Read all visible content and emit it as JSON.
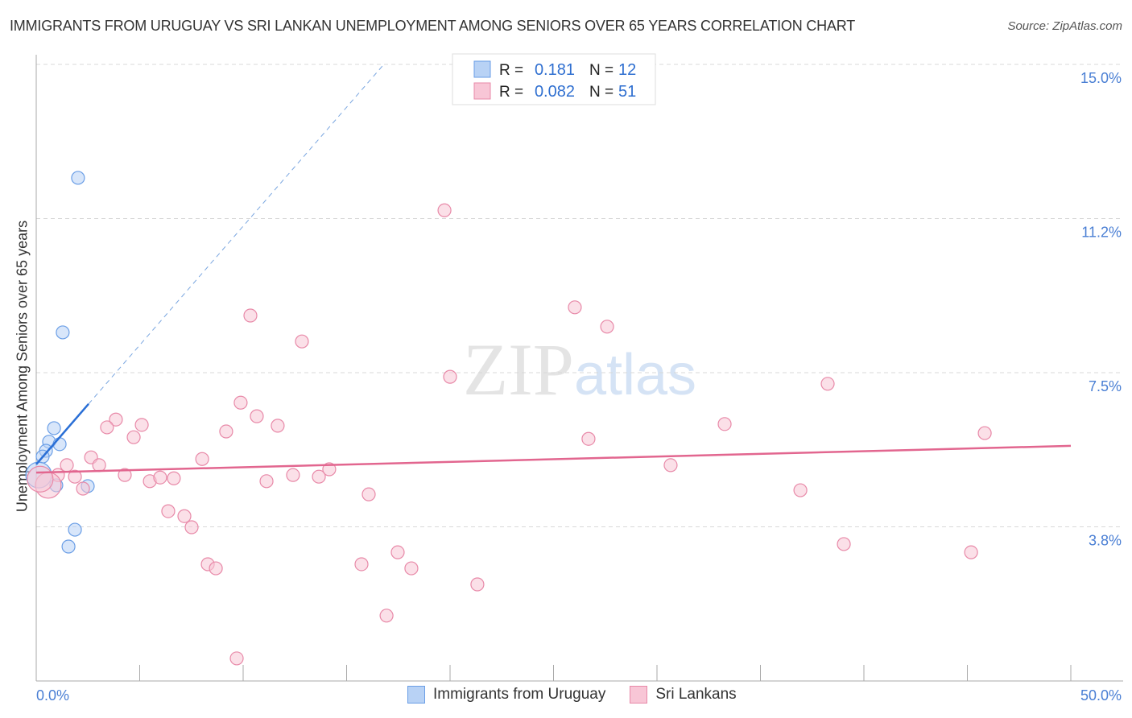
{
  "chart_data": {
    "type": "scatter",
    "title": "IMMIGRANTS FROM URUGUAY VS SRI LANKAN UNEMPLOYMENT AMONG SENIORS OVER 65 YEARS CORRELATION CHART",
    "source": "Source: ZipAtlas.com",
    "xlabel": "",
    "ylabel": "Unemployment Among Seniors over 65 years",
    "xlim": [
      0,
      50
    ],
    "ylim": [
      0,
      15
    ],
    "x_tick_labels": [
      "0.0%",
      "50.0%"
    ],
    "y_ticks": [
      3.75,
      7.5,
      11.25,
      15
    ],
    "y_tick_labels": [
      "3.8%",
      "7.5%",
      "11.2%",
      "15.0%"
    ],
    "grid": true,
    "watermark": "ZIPatlas",
    "legend_stats": [
      {
        "r_label": "R =",
        "r": "0.181",
        "n_label": "N =",
        "n": "12"
      },
      {
        "r_label": "R =",
        "r": "0.082",
        "n_label": "N =",
        "n": "51"
      }
    ],
    "series": [
      {
        "name": "Immigrants from Uruguay",
        "color": "#6a9ee6",
        "fill": "#b8d2f5",
        "trend": {
          "x": [
            0,
            2.53
          ],
          "y": [
            5.27,
            6.74
          ],
          "dashed_to": [
            16.73,
            14.96
          ]
        },
        "points": [
          [
            2.02,
            12.24
          ],
          [
            1.28,
            8.48
          ],
          [
            0.86,
            6.15
          ],
          [
            0.62,
            5.82
          ],
          [
            1.13,
            5.76
          ],
          [
            0.47,
            5.6
          ],
          [
            0.31,
            5.46
          ],
          [
            0.12,
            5.01,
            "large"
          ],
          [
            0.97,
            4.76
          ],
          [
            2.49,
            4.74
          ],
          [
            1.87,
            3.68
          ],
          [
            1.56,
            3.27
          ]
        ]
      },
      {
        "name": "Sri Lankans",
        "color": "#e889a8",
        "fill": "#f8c6d6",
        "trend": {
          "x": [
            0,
            50
          ],
          "y": [
            5.07,
            5.72
          ]
        },
        "points": [
          [
            19.73,
            11.45
          ],
          [
            10.35,
            8.89
          ],
          [
            26.03,
            9.09
          ],
          [
            27.59,
            8.62
          ],
          [
            12.84,
            8.26
          ],
          [
            20.0,
            7.4
          ],
          [
            38.25,
            7.23
          ],
          [
            9.88,
            6.77
          ],
          [
            10.66,
            6.44
          ],
          [
            3.85,
            6.36
          ],
          [
            3.42,
            6.17
          ],
          [
            5.1,
            6.23
          ],
          [
            11.67,
            6.21
          ],
          [
            9.18,
            6.07
          ],
          [
            4.71,
            5.93
          ],
          [
            33.27,
            6.25
          ],
          [
            26.69,
            5.89
          ],
          [
            45.84,
            6.03
          ],
          [
            2.65,
            5.44
          ],
          [
            8.02,
            5.4
          ],
          [
            3.04,
            5.25
          ],
          [
            1.48,
            5.25
          ],
          [
            30.66,
            5.25
          ],
          [
            14.16,
            5.15
          ],
          [
            4.28,
            5.01
          ],
          [
            12.41,
            5.01
          ],
          [
            1.05,
            5.01
          ],
          [
            1.87,
            4.97
          ],
          [
            5.49,
            4.86
          ],
          [
            5.99,
            4.95
          ],
          [
            6.65,
            4.93
          ],
          [
            11.13,
            4.86
          ],
          [
            13.66,
            4.97
          ],
          [
            0.58,
            4.76,
            "large"
          ],
          [
            2.26,
            4.68
          ],
          [
            36.93,
            4.64
          ],
          [
            16.07,
            4.54
          ],
          [
            6.38,
            4.13
          ],
          [
            7.16,
            4.01
          ],
          [
            7.51,
            3.74
          ],
          [
            39.03,
            3.33
          ],
          [
            17.47,
            3.13
          ],
          [
            45.18,
            3.13
          ],
          [
            8.29,
            2.84
          ],
          [
            15.72,
            2.84
          ],
          [
            8.68,
            2.74
          ],
          [
            18.13,
            2.74
          ],
          [
            21.32,
            2.35
          ],
          [
            16.93,
            1.59
          ],
          [
            9.69,
            0.55
          ],
          [
            0.19,
            4.91,
            "large"
          ]
        ]
      }
    ]
  }
}
